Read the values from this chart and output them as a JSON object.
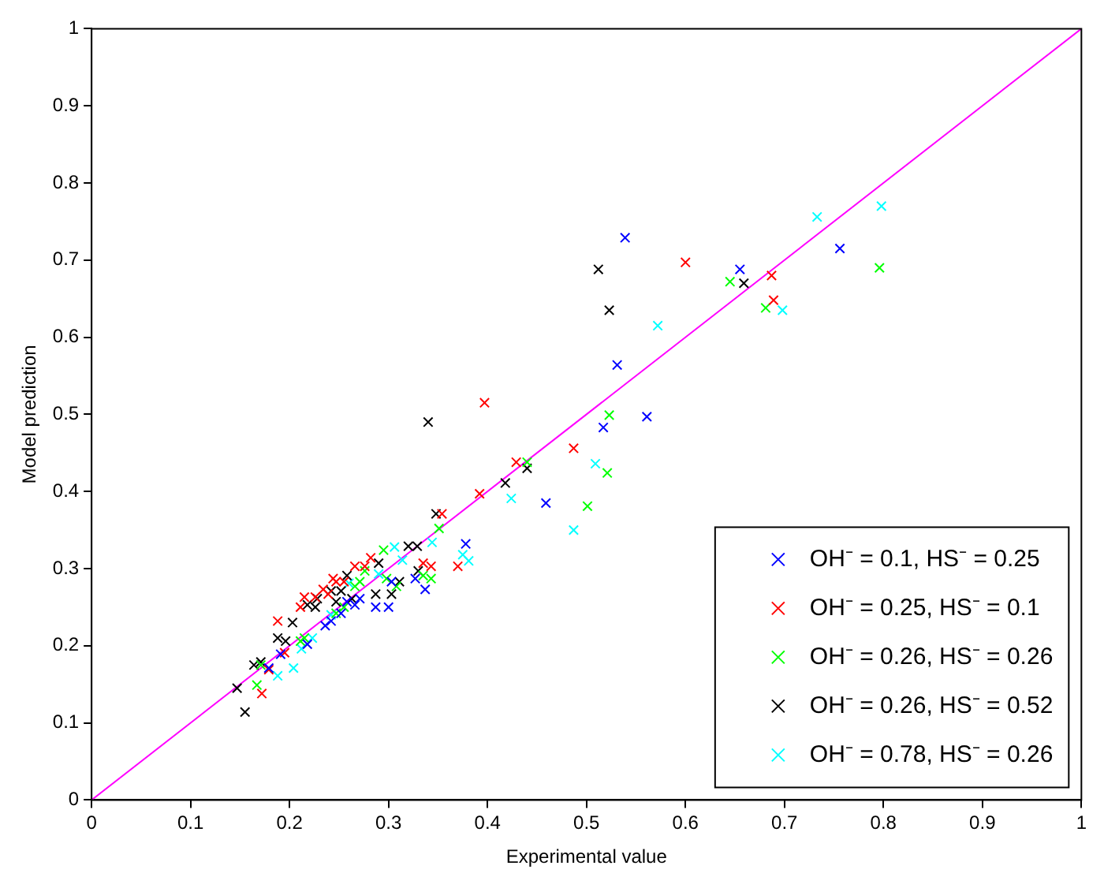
{
  "chart_data": {
    "type": "scatter",
    "xlabel": "Experimental value",
    "ylabel": "Model prediction",
    "xlim": [
      0,
      1
    ],
    "ylim": [
      0,
      1
    ],
    "xticks": [
      0,
      0.1,
      0.2,
      0.3,
      0.4,
      0.5,
      0.6,
      0.7,
      0.8,
      0.9,
      1
    ],
    "yticks": [
      0,
      0.1,
      0.2,
      0.3,
      0.4,
      0.5,
      0.6,
      0.7,
      0.8,
      0.9,
      1
    ],
    "grid": false,
    "legend": "bottom right",
    "marker": "cross",
    "series": [
      {
        "name": "OH⁻ = 0.1, HS⁻ = 0.25",
        "color": "#0000ff",
        "x": [
          0.539,
          0.756,
          0.655,
          0.531,
          0.561,
          0.517,
          0.459,
          0.378,
          0.303,
          0.327,
          0.337,
          0.3,
          0.287,
          0.266,
          0.252,
          0.242,
          0.236,
          0.218,
          0.179,
          0.191,
          0.258,
          0.271
        ],
        "values": [
          0.729,
          0.715,
          0.688,
          0.564,
          0.497,
          0.483,
          0.385,
          0.332,
          0.283,
          0.287,
          0.273,
          0.25,
          0.25,
          0.253,
          0.242,
          0.232,
          0.226,
          0.202,
          0.171,
          0.189,
          0.257,
          0.261
        ]
      },
      {
        "name": "OH⁻ = 0.25, HS⁻ = 0.1",
        "color": "#ff0000",
        "x": [
          0.6,
          0.687,
          0.689,
          0.397,
          0.487,
          0.429,
          0.392,
          0.354,
          0.37,
          0.282,
          0.266,
          0.276,
          0.335,
          0.343,
          0.255,
          0.244,
          0.239,
          0.247,
          0.215,
          0.211,
          0.234,
          0.226,
          0.188,
          0.195,
          0.172,
          0.179
        ],
        "values": [
          0.697,
          0.68,
          0.648,
          0.515,
          0.456,
          0.438,
          0.397,
          0.371,
          0.303,
          0.314,
          0.303,
          0.303,
          0.307,
          0.303,
          0.283,
          0.287,
          0.267,
          0.283,
          0.263,
          0.25,
          0.273,
          0.263,
          0.232,
          0.191,
          0.138,
          0.169
        ]
      },
      {
        "name": "OH⁻ = 0.26, HS⁻ = 0.26",
        "color": "#00ff00",
        "x": [
          0.796,
          0.645,
          0.681,
          0.523,
          0.521,
          0.44,
          0.501,
          0.351,
          0.295,
          0.276,
          0.298,
          0.335,
          0.343,
          0.308,
          0.271,
          0.266,
          0.255,
          0.247,
          0.211,
          0.215,
          0.167,
          0.171
        ],
        "values": [
          0.69,
          0.672,
          0.638,
          0.499,
          0.424,
          0.438,
          0.381,
          0.352,
          0.324,
          0.297,
          0.287,
          0.291,
          0.287,
          0.277,
          0.283,
          0.277,
          0.25,
          0.242,
          0.206,
          0.21,
          0.149,
          0.175
        ]
      },
      {
        "name": "OH⁻ = 0.26, HS⁻ = 0.52",
        "color": "#000000",
        "x": [
          0.512,
          0.659,
          0.523,
          0.34,
          0.44,
          0.418,
          0.348,
          0.32,
          0.329,
          0.29,
          0.311,
          0.303,
          0.287,
          0.33,
          0.242,
          0.258,
          0.228,
          0.218,
          0.203,
          0.188,
          0.196,
          0.171,
          0.164,
          0.147,
          0.155,
          0.226,
          0.252,
          0.247,
          0.263
        ],
        "values": [
          0.688,
          0.67,
          0.635,
          0.49,
          0.43,
          0.411,
          0.371,
          0.329,
          0.329,
          0.307,
          0.283,
          0.267,
          0.267,
          0.297,
          0.271,
          0.291,
          0.261,
          0.253,
          0.23,
          0.21,
          0.206,
          0.179,
          0.175,
          0.145,
          0.114,
          0.25,
          0.271,
          0.257,
          0.261
        ]
      },
      {
        "name": "OH⁻ = 0.78, HS⁻ = 0.26",
        "color": "#00ffff",
        "x": [
          0.733,
          0.798,
          0.698,
          0.572,
          0.509,
          0.424,
          0.487,
          0.375,
          0.381,
          0.344,
          0.306,
          0.314,
          0.29,
          0.26,
          0.242,
          0.223,
          0.204,
          0.188,
          0.212
        ],
        "values": [
          0.756,
          0.77,
          0.635,
          0.615,
          0.436,
          0.391,
          0.35,
          0.318,
          0.31,
          0.334,
          0.328,
          0.311,
          0.293,
          0.281,
          0.24,
          0.21,
          0.171,
          0.161,
          0.196
        ]
      },
      {
        "type": "line",
        "marker": "none",
        "color": "#ff00ff",
        "x": [
          0,
          1
        ],
        "values": [
          0,
          1
        ]
      }
    ]
  }
}
